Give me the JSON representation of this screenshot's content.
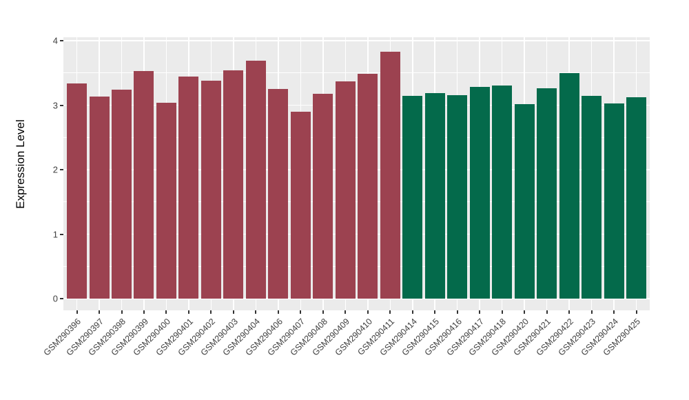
{
  "chart_data": {
    "type": "bar",
    "title": "",
    "xlabel": "",
    "ylabel": "Expression Level",
    "categories": [
      "GSM290396",
      "GSM290397",
      "GSM290398",
      "GSM290399",
      "GSM290400",
      "GSM290401",
      "GSM290402",
      "GSM290403",
      "GSM290404",
      "GSM290406",
      "GSM290407",
      "GSM290408",
      "GSM290409",
      "GSM290410",
      "GSM290411",
      "GSM290414",
      "GSM290415",
      "GSM290416",
      "GSM290417",
      "GSM290418",
      "GSM290420",
      "GSM290421",
      "GSM290422",
      "GSM290423",
      "GSM290424",
      "GSM290425"
    ],
    "values": [
      3.34,
      3.13,
      3.24,
      3.53,
      3.04,
      3.44,
      3.38,
      3.54,
      3.69,
      3.25,
      2.9,
      3.18,
      3.37,
      3.49,
      3.83,
      3.14,
      3.19,
      3.16,
      3.28,
      3.31,
      3.02,
      3.26,
      3.5,
      3.15,
      3.03,
      3.12
    ],
    "groups": [
      "maroon",
      "maroon",
      "maroon",
      "maroon",
      "maroon",
      "maroon",
      "maroon",
      "maroon",
      "maroon",
      "maroon",
      "maroon",
      "maroon",
      "maroon",
      "maroon",
      "maroon",
      "green",
      "green",
      "green",
      "green",
      "green",
      "green",
      "green",
      "green",
      "green",
      "green",
      "green"
    ],
    "group_colors": {
      "maroon": "#9C4250",
      "green": "#046A4B"
    },
    "y_ticks": [
      0,
      1,
      2,
      3,
      4
    ],
    "y_minor_ticks": [
      0.5,
      1.5,
      2.5,
      3.5
    ],
    "ylim": [
      -0.182,
      4.053
    ],
    "grid": true,
    "legend": "none",
    "panel_background": "#EBEBEB",
    "gridline_color": "#FFFFFF",
    "x_label_rotation_deg": 45
  }
}
